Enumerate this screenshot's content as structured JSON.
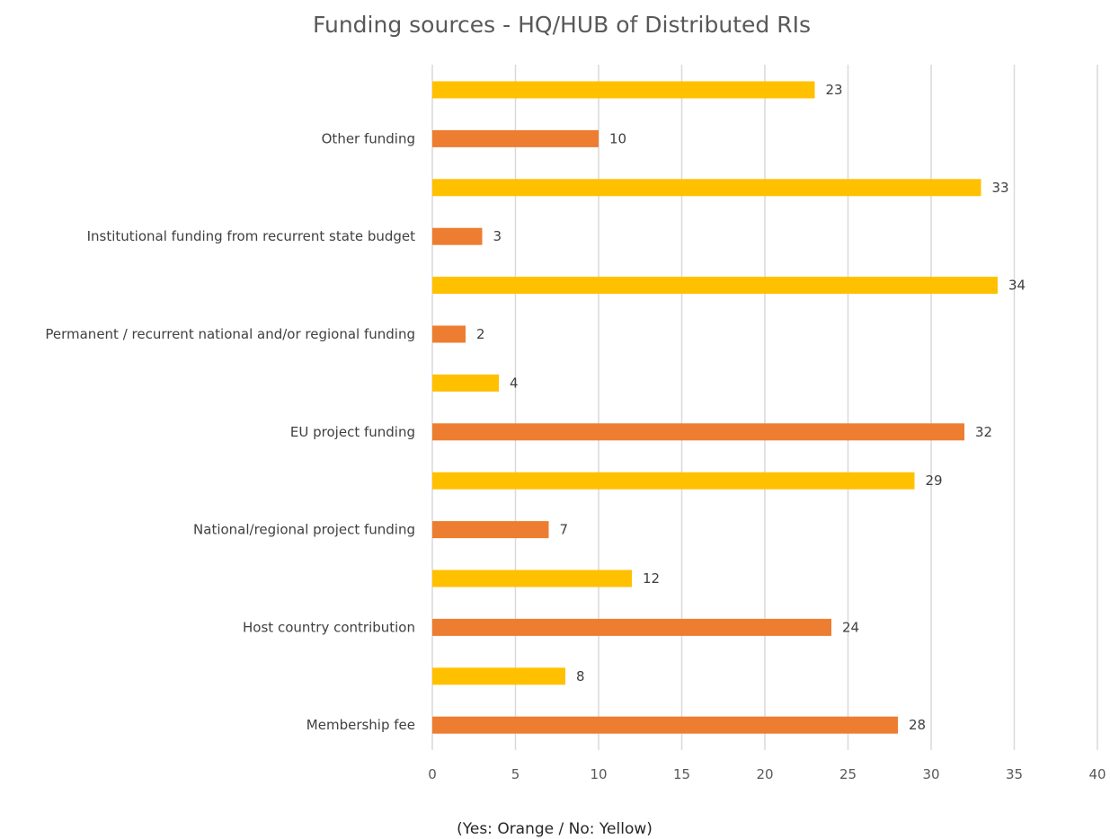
{
  "chart_data": {
    "type": "bar",
    "orientation": "horizontal",
    "title": "Funding sources - HQ/HUB of Distributed RIs",
    "caption": "(Yes: Orange / No: Yellow)",
    "xlim": [
      0,
      40
    ],
    "xticks": [
      0,
      5,
      10,
      15,
      20,
      25,
      30,
      35,
      40
    ],
    "grid": "vertical",
    "legend": "none",
    "colors": {
      "orange": "#ED7D31",
      "yellow": "#FFC000"
    },
    "categories": [
      "Membership fee",
      "Host country contribution",
      "National/regional project funding",
      "EU project funding",
      "Permanent / recurrent national and/or regional funding",
      "Institutional funding from recurrent state budget",
      "Other funding"
    ],
    "bars": [
      {
        "label": "",
        "value": 23,
        "color": "yellow"
      },
      {
        "label": "Other funding",
        "value": 10,
        "color": "orange"
      },
      {
        "label": "",
        "value": 33,
        "color": "yellow"
      },
      {
        "label": "Institutional funding from recurrent state budget",
        "value": 3,
        "color": "orange"
      },
      {
        "label": "",
        "value": 34,
        "color": "yellow"
      },
      {
        "label": "Permanent / recurrent national and/or regional funding",
        "value": 2,
        "color": "orange"
      },
      {
        "label": "",
        "value": 4,
        "color": "yellow"
      },
      {
        "label": "EU project funding",
        "value": 32,
        "color": "orange"
      },
      {
        "label": "",
        "value": 29,
        "color": "yellow"
      },
      {
        "label": "National/regional project funding",
        "value": 7,
        "color": "orange"
      },
      {
        "label": "",
        "value": 12,
        "color": "yellow"
      },
      {
        "label": "Host country contribution",
        "value": 24,
        "color": "orange"
      },
      {
        "label": "",
        "value": 8,
        "color": "yellow"
      },
      {
        "label": "Membership fee",
        "value": 28,
        "color": "orange"
      }
    ]
  }
}
